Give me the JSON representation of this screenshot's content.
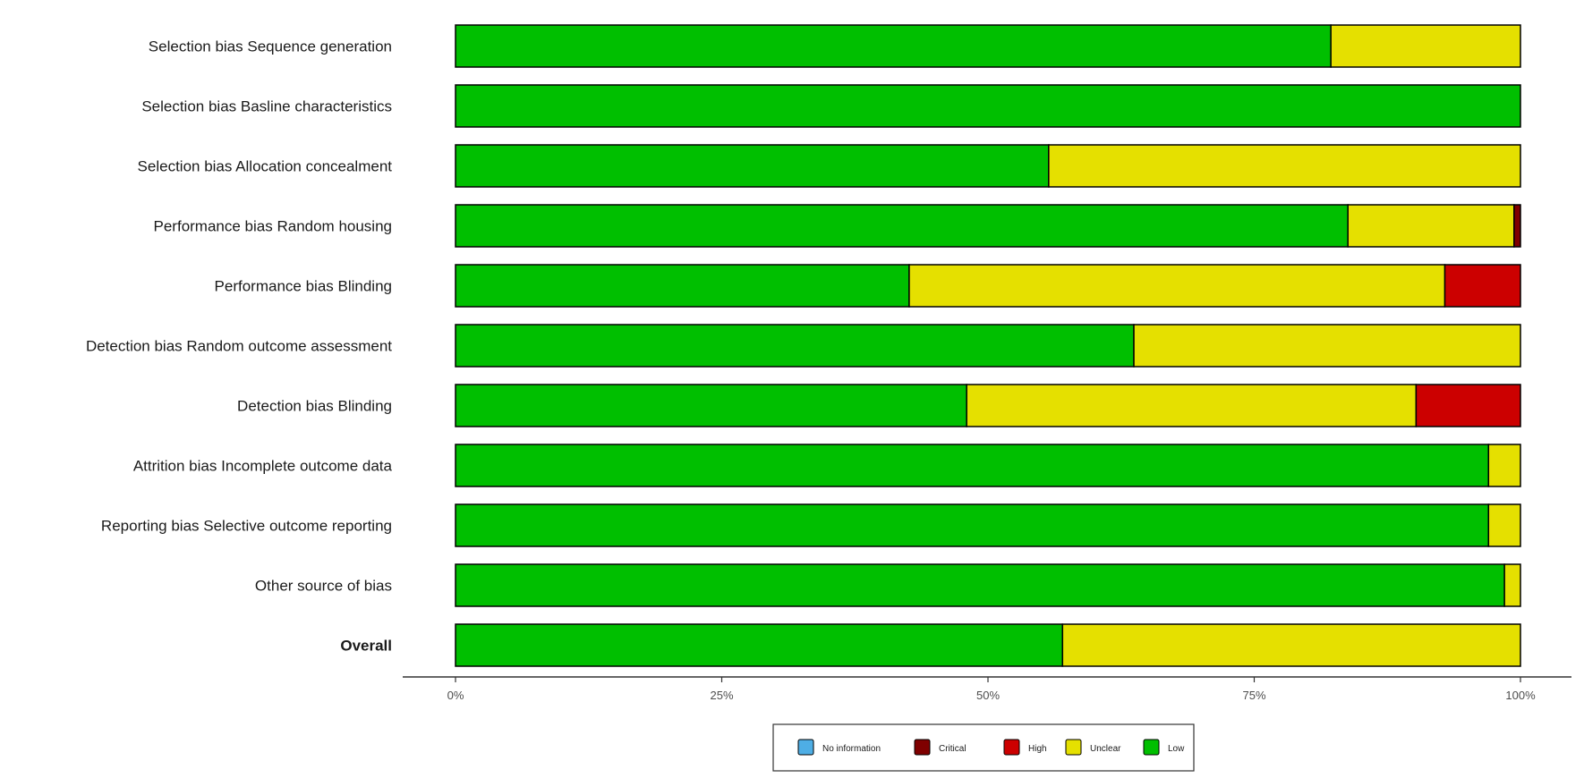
{
  "chart_data": {
    "type": "bar",
    "orientation": "horizontal",
    "stacked": true,
    "categories": [
      "Selection bias Sequence generation",
      "Selection bias Basline characteristics",
      "Selection bias Allocation concealment",
      "Performance bias Random housing",
      "Performance bias Blinding",
      "Detection bias Random outcome assessment",
      "Detection bias Blinding",
      "Attrition bias Incomplete outcome data",
      "Reporting bias Selective outcome reporting",
      "Other source of bias",
      "Overall"
    ],
    "bold_categories": [
      "Overall"
    ],
    "series": [
      {
        "name": "Low",
        "color": "#00bf00",
        "values": [
          82.2,
          100,
          55.7,
          83.8,
          42.6,
          63.7,
          48.0,
          97.0,
          97.0,
          98.5,
          57.0
        ]
      },
      {
        "name": "Unclear",
        "color": "#e5e000",
        "values": [
          17.8,
          0,
          44.3,
          15.6,
          50.3,
          36.3,
          42.2,
          3.0,
          3.0,
          1.5,
          43.0
        ]
      },
      {
        "name": "High",
        "color": "#cc0000",
        "values": [
          0,
          0,
          0,
          0,
          7.1,
          0,
          9.8,
          0,
          0,
          0,
          0
        ]
      },
      {
        "name": "Critical",
        "color": "#7f0000",
        "values": [
          0,
          0,
          0,
          0.6,
          0,
          0,
          0,
          0,
          0,
          0,
          0
        ]
      },
      {
        "name": "No information",
        "color": "#4eaee5",
        "values": [
          0,
          0,
          0,
          0,
          0,
          0,
          0,
          0,
          0,
          0,
          0
        ]
      }
    ],
    "x_ticks": [
      "0%",
      "25%",
      "50%",
      "75%",
      "100%"
    ],
    "xlim": [
      0,
      100
    ],
    "legend": {
      "placement": "bottom",
      "entries": [
        {
          "label": "No information",
          "color": "#4eaee5"
        },
        {
          "label": "Critical",
          "color": "#7f0000"
        },
        {
          "label": "High",
          "color": "#cc0000"
        },
        {
          "label": "Unclear",
          "color": "#e5e000"
        },
        {
          "label": "Low",
          "color": "#00bf00"
        }
      ]
    }
  }
}
